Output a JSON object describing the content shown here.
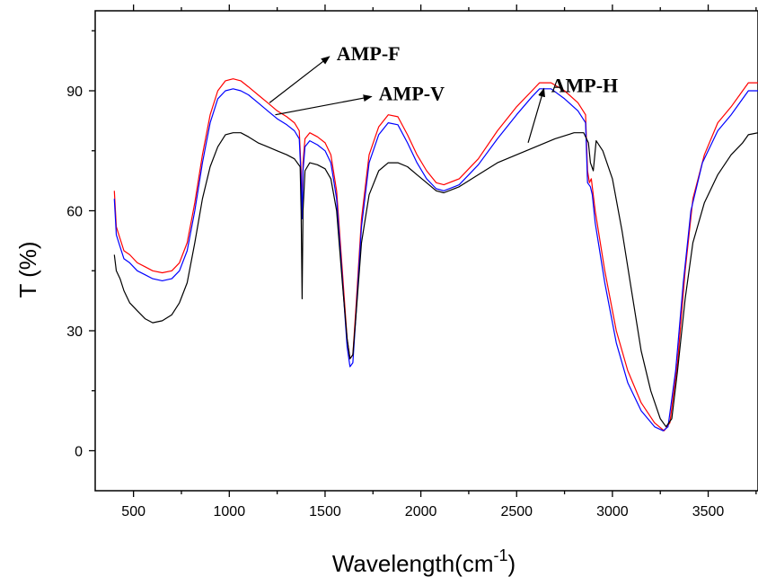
{
  "chart_data": {
    "type": "line",
    "xlabel": "Wavelength(cm",
    "xlabel_sup": "-1",
    "xlabel_close": ")",
    "ylabel": "T (%)",
    "xlim": [
      300,
      3760
    ],
    "ylim": [
      -10,
      110
    ],
    "xticks": [
      500,
      1000,
      1500,
      2000,
      2500,
      3000,
      3500
    ],
    "yticks": [
      0,
      30,
      60,
      90
    ],
    "grid": false,
    "series": [
      {
        "name": "AMP-F",
        "color": "#ff0000",
        "points": [
          [
            400,
            65
          ],
          [
            410,
            56
          ],
          [
            430,
            53
          ],
          [
            450,
            50
          ],
          [
            480,
            49
          ],
          [
            520,
            47
          ],
          [
            560,
            46
          ],
          [
            600,
            45
          ],
          [
            650,
            44.5
          ],
          [
            700,
            45
          ],
          [
            740,
            47
          ],
          [
            780,
            52
          ],
          [
            820,
            62
          ],
          [
            860,
            74
          ],
          [
            900,
            84
          ],
          [
            940,
            90
          ],
          [
            980,
            92.5
          ],
          [
            1020,
            93
          ],
          [
            1060,
            92.5
          ],
          [
            1100,
            91
          ],
          [
            1150,
            89
          ],
          [
            1200,
            87
          ],
          [
            1250,
            85
          ],
          [
            1300,
            83.5
          ],
          [
            1340,
            82
          ],
          [
            1365,
            80
          ],
          [
            1375,
            70
          ],
          [
            1380,
            60
          ],
          [
            1385,
            72
          ],
          [
            1395,
            78
          ],
          [
            1420,
            79.5
          ],
          [
            1460,
            78.5
          ],
          [
            1500,
            77
          ],
          [
            1530,
            74
          ],
          [
            1560,
            65
          ],
          [
            1590,
            45
          ],
          [
            1615,
            28
          ],
          [
            1630,
            23
          ],
          [
            1645,
            24
          ],
          [
            1660,
            35
          ],
          [
            1690,
            58
          ],
          [
            1730,
            74
          ],
          [
            1780,
            81
          ],
          [
            1830,
            84
          ],
          [
            1880,
            83.5
          ],
          [
            1930,
            79
          ],
          [
            1980,
            74
          ],
          [
            2030,
            70
          ],
          [
            2080,
            67
          ],
          [
            2120,
            66.5
          ],
          [
            2200,
            68
          ],
          [
            2300,
            73
          ],
          [
            2400,
            80
          ],
          [
            2500,
            86
          ],
          [
            2580,
            90
          ],
          [
            2620,
            92
          ],
          [
            2680,
            92
          ],
          [
            2750,
            90
          ],
          [
            2820,
            87
          ],
          [
            2860,
            84
          ],
          [
            2870,
            70
          ],
          [
            2880,
            67
          ],
          [
            2890,
            68
          ],
          [
            2910,
            60
          ],
          [
            2960,
            45
          ],
          [
            3020,
            30
          ],
          [
            3080,
            20
          ],
          [
            3150,
            12
          ],
          [
            3220,
            7
          ],
          [
            3270,
            5
          ],
          [
            3300,
            7
          ],
          [
            3340,
            22
          ],
          [
            3380,
            45
          ],
          [
            3420,
            63
          ],
          [
            3480,
            74
          ],
          [
            3550,
            82
          ],
          [
            3620,
            86
          ],
          [
            3680,
            90
          ],
          [
            3710,
            92
          ],
          [
            3760,
            92
          ]
        ]
      },
      {
        "name": "AMP-V",
        "color": "#0000ff",
        "points": [
          [
            400,
            63
          ],
          [
            410,
            54
          ],
          [
            430,
            51
          ],
          [
            450,
            48
          ],
          [
            480,
            47
          ],
          [
            520,
            45
          ],
          [
            560,
            44
          ],
          [
            600,
            43
          ],
          [
            650,
            42.5
          ],
          [
            700,
            43
          ],
          [
            740,
            45
          ],
          [
            780,
            50
          ],
          [
            820,
            60
          ],
          [
            860,
            72
          ],
          [
            900,
            82
          ],
          [
            940,
            88
          ],
          [
            980,
            90
          ],
          [
            1020,
            90.5
          ],
          [
            1060,
            90
          ],
          [
            1100,
            89
          ],
          [
            1150,
            87
          ],
          [
            1200,
            85
          ],
          [
            1250,
            83
          ],
          [
            1300,
            81.5
          ],
          [
            1340,
            80
          ],
          [
            1365,
            78
          ],
          [
            1375,
            68
          ],
          [
            1380,
            58
          ],
          [
            1385,
            70
          ],
          [
            1395,
            76
          ],
          [
            1420,
            77.5
          ],
          [
            1460,
            76.5
          ],
          [
            1500,
            75
          ],
          [
            1530,
            72
          ],
          [
            1560,
            63
          ],
          [
            1590,
            43
          ],
          [
            1615,
            26
          ],
          [
            1630,
            21
          ],
          [
            1645,
            22
          ],
          [
            1660,
            33
          ],
          [
            1690,
            56
          ],
          [
            1730,
            72
          ],
          [
            1780,
            79
          ],
          [
            1830,
            82
          ],
          [
            1880,
            81.5
          ],
          [
            1930,
            77
          ],
          [
            1980,
            72
          ],
          [
            2030,
            68
          ],
          [
            2080,
            65.5
          ],
          [
            2120,
            65
          ],
          [
            2200,
            66.5
          ],
          [
            2300,
            71.5
          ],
          [
            2400,
            78
          ],
          [
            2500,
            84
          ],
          [
            2580,
            88.5
          ],
          [
            2620,
            90.5
          ],
          [
            2680,
            90.5
          ],
          [
            2750,
            88
          ],
          [
            2820,
            85
          ],
          [
            2860,
            82
          ],
          [
            2870,
            67
          ],
          [
            2885,
            66
          ],
          [
            2895,
            64
          ],
          [
            2910,
            57
          ],
          [
            2960,
            42
          ],
          [
            3020,
            27
          ],
          [
            3080,
            17
          ],
          [
            3150,
            10
          ],
          [
            3220,
            6
          ],
          [
            3265,
            5
          ],
          [
            3290,
            6
          ],
          [
            3330,
            20
          ],
          [
            3370,
            42
          ],
          [
            3410,
            60
          ],
          [
            3470,
            72
          ],
          [
            3550,
            80
          ],
          [
            3620,
            84
          ],
          [
            3680,
            88
          ],
          [
            3710,
            90
          ],
          [
            3760,
            90
          ]
        ]
      },
      {
        "name": "AMP-H",
        "color": "#000000",
        "points": [
          [
            400,
            49
          ],
          [
            410,
            45
          ],
          [
            430,
            43
          ],
          [
            450,
            40
          ],
          [
            480,
            37
          ],
          [
            520,
            35
          ],
          [
            560,
            33
          ],
          [
            600,
            32
          ],
          [
            650,
            32.5
          ],
          [
            700,
            34
          ],
          [
            740,
            37
          ],
          [
            780,
            42
          ],
          [
            820,
            52
          ],
          [
            860,
            63
          ],
          [
            900,
            71
          ],
          [
            940,
            76
          ],
          [
            980,
            79
          ],
          [
            1020,
            79.5
          ],
          [
            1060,
            79.5
          ],
          [
            1100,
            78.5
          ],
          [
            1150,
            77
          ],
          [
            1200,
            76
          ],
          [
            1250,
            75
          ],
          [
            1300,
            74
          ],
          [
            1340,
            73
          ],
          [
            1370,
            71
          ],
          [
            1375,
            60
          ],
          [
            1380,
            38
          ],
          [
            1385,
            60
          ],
          [
            1395,
            70
          ],
          [
            1420,
            72
          ],
          [
            1460,
            71.5
          ],
          [
            1500,
            70.5
          ],
          [
            1530,
            68
          ],
          [
            1560,
            60
          ],
          [
            1590,
            42
          ],
          [
            1615,
            28
          ],
          [
            1630,
            23
          ],
          [
            1645,
            24
          ],
          [
            1660,
            33
          ],
          [
            1690,
            52
          ],
          [
            1730,
            64
          ],
          [
            1780,
            70
          ],
          [
            1830,
            72
          ],
          [
            1880,
            72
          ],
          [
            1930,
            71
          ],
          [
            1980,
            69
          ],
          [
            2030,
            67
          ],
          [
            2080,
            65
          ],
          [
            2120,
            64.5
          ],
          [
            2200,
            66
          ],
          [
            2300,
            69
          ],
          [
            2400,
            72
          ],
          [
            2500,
            74
          ],
          [
            2600,
            76
          ],
          [
            2700,
            78
          ],
          [
            2800,
            79.5
          ],
          [
            2850,
            79.5
          ],
          [
            2875,
            77
          ],
          [
            2885,
            72
          ],
          [
            2900,
            70
          ],
          [
            2915,
            77.5
          ],
          [
            2950,
            75
          ],
          [
            3000,
            68
          ],
          [
            3050,
            55
          ],
          [
            3100,
            40
          ],
          [
            3150,
            25
          ],
          [
            3200,
            15
          ],
          [
            3250,
            8
          ],
          [
            3280,
            6
          ],
          [
            3310,
            8
          ],
          [
            3340,
            20
          ],
          [
            3380,
            38
          ],
          [
            3420,
            52
          ],
          [
            3480,
            62
          ],
          [
            3550,
            69
          ],
          [
            3620,
            74
          ],
          [
            3680,
            77
          ],
          [
            3710,
            79
          ],
          [
            3760,
            79.5
          ]
        ]
      }
    ],
    "annotations": [
      {
        "text": "AMP-F",
        "label_x": 1560,
        "label_y": 99,
        "target_x": 1210,
        "target_y": 87
      },
      {
        "text": "AMP-V",
        "label_x": 1780,
        "label_y": 89,
        "target_x": 1240,
        "target_y": 84
      },
      {
        "text": "AMP-H",
        "label_x": 2680,
        "label_y": 91,
        "target_x": 2560,
        "target_y": 77
      }
    ]
  }
}
